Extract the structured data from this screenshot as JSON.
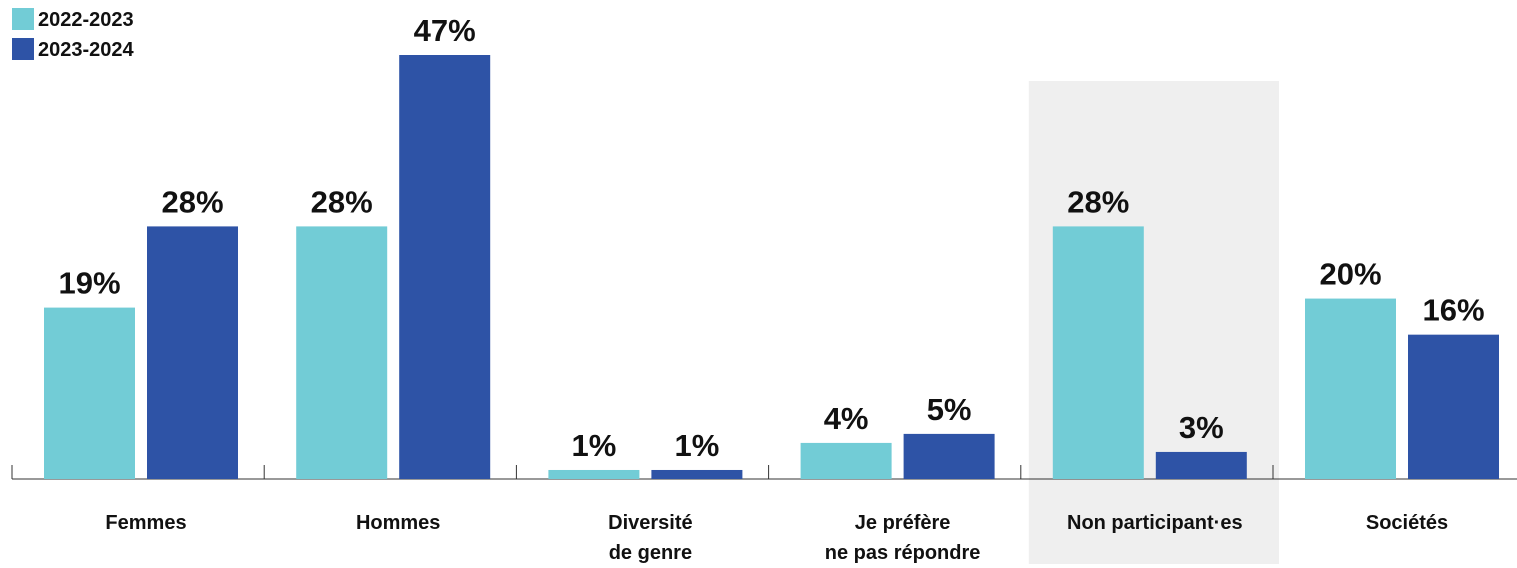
{
  "chart_data": {
    "type": "bar",
    "categories": [
      "Femmes",
      "Hommes",
      "Diversité\nde genre",
      "Je préfère\nne pas répondre",
      "Non participant·es",
      "Sociétés"
    ],
    "series": [
      {
        "name": "2022-2023",
        "color": "#72ccd6",
        "values": [
          19,
          28,
          1,
          4,
          28,
          20
        ],
        "value_labels": [
          "19%",
          "28%",
          "1%",
          "4%",
          "28%",
          "20%"
        ]
      },
      {
        "name": "2023-2024",
        "color": "#2e53a6",
        "values": [
          28,
          47,
          1,
          5,
          3,
          16
        ],
        "value_labels": [
          "28%",
          "47%",
          "1%",
          "5%",
          "3%",
          "16%"
        ]
      }
    ],
    "ylim": [
      0,
      47
    ],
    "highlight_index": 4,
    "highlight_color": "#efefef",
    "legend": "top-left"
  }
}
